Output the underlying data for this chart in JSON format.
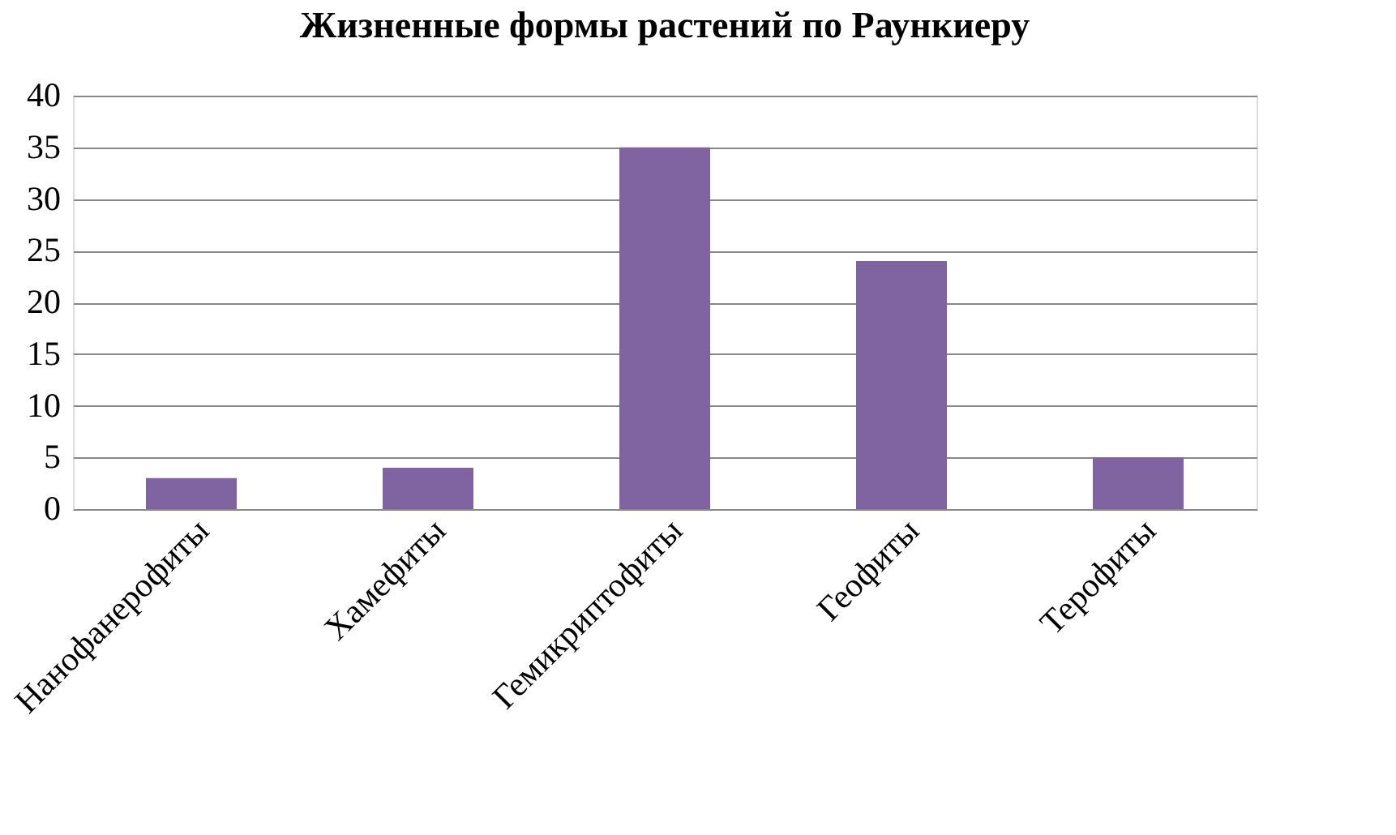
{
  "chart_data": {
    "type": "bar",
    "title": "Жизненные формы растений по Раункиеру",
    "categories": [
      "Нанофанерофиты",
      "Хамефиты",
      "Гемикриптофиты",
      "Геофиты",
      "Терофиты"
    ],
    "values": [
      3,
      4,
      35,
      24,
      5
    ],
    "color": "#8064a2",
    "ylim": [
      0,
      40
    ],
    "yticks": [
      0,
      5,
      10,
      15,
      20,
      25,
      30,
      35,
      40
    ],
    "grid": "y"
  }
}
